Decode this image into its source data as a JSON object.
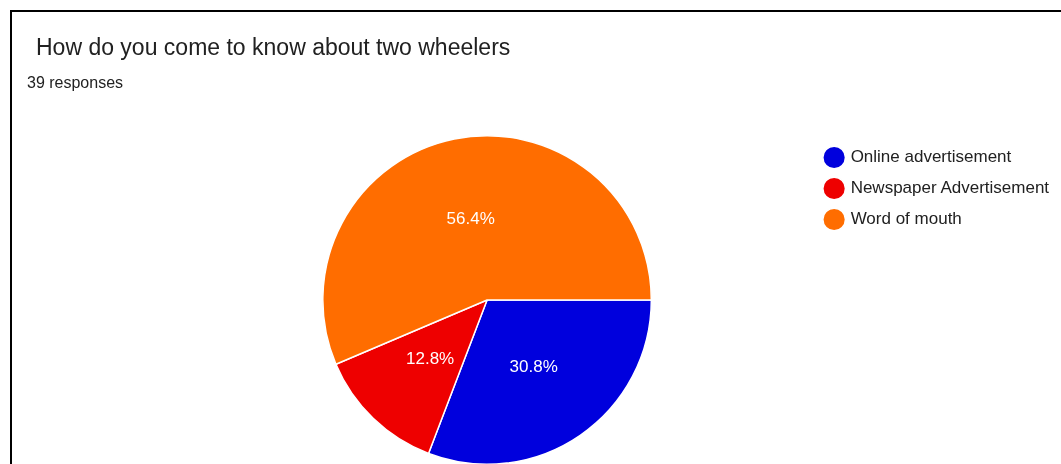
{
  "chart_data": {
    "type": "pie",
    "title": "How do you come to know about two wheelers",
    "subtitle": "39 responses",
    "categories": [
      "Online advertisement",
      "Newspaper Advertisement",
      "Word of mouth"
    ],
    "values": [
      30.8,
      12.8,
      56.4
    ],
    "colors": [
      "#0000dd",
      "#ee0000",
      "#ff6d00"
    ],
    "value_labels": [
      "30.8%",
      "12.8%",
      "56.4%"
    ],
    "legend": "top right"
  }
}
